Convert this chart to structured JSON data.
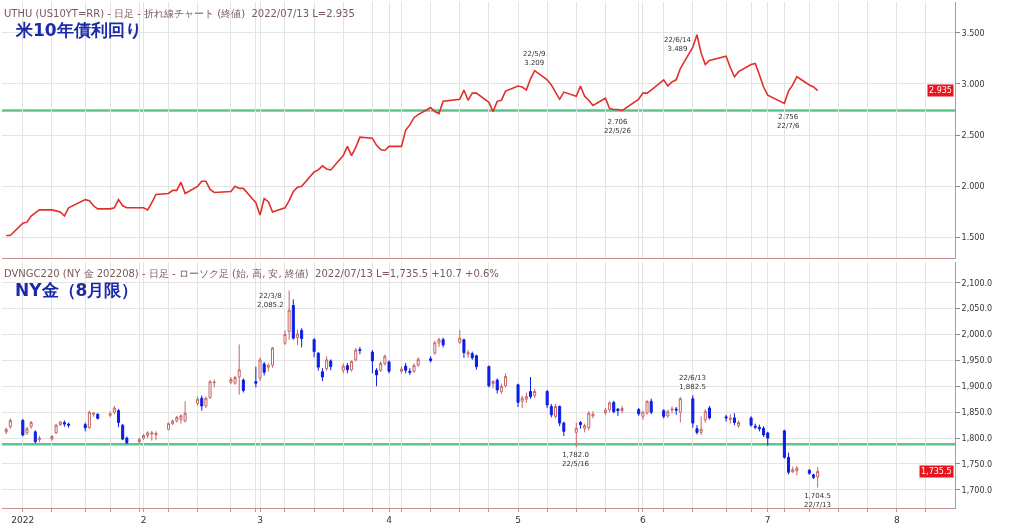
{
  "chart_data": [
    {
      "type": "line",
      "title": "米10年債利回り",
      "subtitle": "UTHU (US10YT=RR) - 日足 - 折れ線チャート (終値)  2022/07/13 L=2.935",
      "color": "#e0302a",
      "grid": true,
      "tick_labels": "y",
      "x": [
        "2021-12-30",
        "2021-12-31",
        "2022-01-03",
        "2022-01-04",
        "2022-01-05",
        "2022-01-06",
        "2022-01-07",
        "2022-01-10",
        "2022-01-11",
        "2022-01-12",
        "2022-01-13",
        "2022-01-14",
        "2022-01-18",
        "2022-01-19",
        "2022-01-20",
        "2022-01-21",
        "2022-01-24",
        "2022-01-25",
        "2022-01-26",
        "2022-01-27",
        "2022-01-28",
        "2022-01-31",
        "2022-02-01",
        "2022-02-02",
        "2022-02-03",
        "2022-02-04",
        "2022-02-07",
        "2022-02-08",
        "2022-02-09",
        "2022-02-10",
        "2022-02-11",
        "2022-02-14",
        "2022-02-15",
        "2022-02-16",
        "2022-02-17",
        "2022-02-18",
        "2022-02-22",
        "2022-02-23",
        "2022-02-24",
        "2022-02-25",
        "2022-02-28",
        "2022-03-01",
        "2022-03-02",
        "2022-03-03",
        "2022-03-04",
        "2022-03-07",
        "2022-03-08",
        "2022-03-09",
        "2022-03-10",
        "2022-03-11",
        "2022-03-14",
        "2022-03-15",
        "2022-03-16",
        "2022-03-17",
        "2022-03-18",
        "2022-03-21",
        "2022-03-22",
        "2022-03-23",
        "2022-03-24",
        "2022-03-25",
        "2022-03-28",
        "2022-03-29",
        "2022-03-30",
        "2022-03-31",
        "2022-04-01",
        "2022-04-04",
        "2022-04-05",
        "2022-04-06",
        "2022-04-07",
        "2022-04-08",
        "2022-04-11",
        "2022-04-12",
        "2022-04-13",
        "2022-04-14",
        "2022-04-18",
        "2022-04-19",
        "2022-04-20",
        "2022-04-21",
        "2022-04-22",
        "2022-04-25",
        "2022-04-26",
        "2022-04-27",
        "2022-04-28",
        "2022-04-29",
        "2022-05-02",
        "2022-05-03",
        "2022-05-04",
        "2022-05-05",
        "2022-05-06",
        "2022-05-09",
        "2022-05-10",
        "2022-05-11",
        "2022-05-12",
        "2022-05-13",
        "2022-05-16",
        "2022-05-17",
        "2022-05-18",
        "2022-05-19",
        "2022-05-20",
        "2022-05-23",
        "2022-05-24",
        "2022-05-25",
        "2022-05-26",
        "2022-05-27",
        "2022-05-31",
        "2022-06-01",
        "2022-06-02",
        "2022-06-03",
        "2022-06-06",
        "2022-06-07",
        "2022-06-08",
        "2022-06-09",
        "2022-06-10",
        "2022-06-13",
        "2022-06-14",
        "2022-06-15",
        "2022-06-16",
        "2022-06-17",
        "2022-06-21",
        "2022-06-22",
        "2022-06-23",
        "2022-06-24",
        "2022-06-27",
        "2022-06-28",
        "2022-06-29",
        "2022-06-30",
        "2022-07-01",
        "2022-07-05",
        "2022-07-06",
        "2022-07-07",
        "2022-07-08",
        "2022-07-11",
        "2022-07-12",
        "2022-07-13"
      ],
      "values": [
        1.52,
        1.52,
        1.64,
        1.65,
        1.71,
        1.74,
        1.77,
        1.77,
        1.76,
        1.75,
        1.71,
        1.79,
        1.87,
        1.86,
        1.81,
        1.78,
        1.78,
        1.79,
        1.87,
        1.81,
        1.79,
        1.79,
        1.79,
        1.77,
        1.84,
        1.92,
        1.93,
        1.96,
        1.96,
        2.04,
        1.93,
        2.0,
        2.05,
        2.05,
        1.97,
        1.94,
        1.95,
        2.0,
        1.98,
        1.98,
        1.84,
        1.72,
        1.88,
        1.85,
        1.75,
        1.79,
        1.86,
        1.95,
        1.99,
        2.0,
        2.14,
        2.16,
        2.2,
        2.17,
        2.16,
        2.3,
        2.39,
        2.3,
        2.38,
        2.48,
        2.47,
        2.4,
        2.36,
        2.35,
        2.39,
        2.39,
        2.55,
        2.6,
        2.67,
        2.7,
        2.77,
        2.73,
        2.71,
        2.83,
        2.85,
        2.94,
        2.84,
        2.91,
        2.91,
        2.82,
        2.73,
        2.83,
        2.84,
        2.93,
        2.98,
        2.97,
        2.94,
        3.05,
        3.13,
        3.04,
        2.99,
        2.92,
        2.85,
        2.92,
        2.88,
        2.98,
        2.88,
        2.84,
        2.79,
        2.86,
        2.76,
        2.75,
        2.75,
        2.74,
        2.85,
        2.91,
        2.91,
        2.94,
        3.04,
        2.98,
        3.02,
        3.04,
        3.15,
        3.36,
        3.48,
        3.3,
        3.19,
        3.23,
        3.27,
        3.16,
        3.07,
        3.12,
        3.19,
        3.2,
        3.09,
        2.97,
        2.89,
        2.81,
        2.93,
        2.99,
        3.07,
        2.99,
        2.97,
        2.935
      ],
      "xlim": [
        "2021-12-29",
        "2022-08-15"
      ],
      "xticks": [
        {
          "value": "2022-01-03",
          "label": null
        },
        {
          "value": "2022-01-10",
          "label": null
        },
        {
          "value": "2022-01-18",
          "label": null
        },
        {
          "value": "2022-01-24",
          "label": null
        },
        {
          "value": "2022-01-31",
          "label": null
        },
        {
          "value": "2022-02-01",
          "label": null
        },
        {
          "value": "2022-02-07",
          "label": null
        },
        {
          "value": "2022-02-14",
          "label": null
        },
        {
          "value": "2022-02-22",
          "label": null
        },
        {
          "value": "2022-02-28",
          "label": null
        },
        {
          "value": "2022-03-01",
          "label": null
        },
        {
          "value": "2022-03-07",
          "label": null
        },
        {
          "value": "2022-03-14",
          "label": null
        },
        {
          "value": "2022-03-21",
          "label": null
        },
        {
          "value": "2022-03-28",
          "label": null
        },
        {
          "value": "2022-04-01",
          "label": null
        },
        {
          "value": "2022-04-04",
          "label": null
        },
        {
          "value": "2022-04-11",
          "label": null
        },
        {
          "value": "2022-04-18",
          "label": null
        },
        {
          "value": "2022-04-25",
          "label": null
        },
        {
          "value": "2022-05-02",
          "label": null
        },
        {
          "value": "2022-05-09",
          "label": null
        },
        {
          "value": "2022-05-16",
          "label": null
        },
        {
          "value": "2022-05-23",
          "label": null
        },
        {
          "value": "2022-05-31",
          "label": null
        },
        {
          "value": "2022-06-01",
          "label": null
        },
        {
          "value": "2022-06-06",
          "label": null
        },
        {
          "value": "2022-06-13",
          "label": null
        },
        {
          "value": "2022-06-21",
          "label": null
        },
        {
          "value": "2022-06-27",
          "label": null
        },
        {
          "value": "2022-07-01",
          "label": null
        },
        {
          "value": "2022-07-05",
          "label": null
        },
        {
          "value": "2022-07-11",
          "label": null
        },
        {
          "value": "2022-07-18",
          "label": null
        },
        {
          "value": "2022-07-25",
          "label": null
        },
        {
          "value": "2022-08-01",
          "label": null
        },
        {
          "value": "2022-08-08",
          "label": null
        }
      ],
      "ylim": [
        1.3,
        3.8
      ],
      "yticks": [
        {
          "value": 1.5,
          "label": "1.500"
        },
        {
          "value": 2.0,
          "label": "2.000"
        },
        {
          "value": 2.5,
          "label": "2.500"
        },
        {
          "value": 3.0,
          "label": "3.000"
        },
        {
          "value": 3.5,
          "label": "3.500"
        }
      ],
      "ref_lines": [
        {
          "axis": "y",
          "value": 2.74,
          "color": "#5cc48c"
        }
      ],
      "annotations": [
        {
          "text": "22/5/9\n3.209",
          "x": "2022-05-06",
          "y": 3.13
        },
        {
          "text": "2.706\n22/5/26",
          "x": "2022-05-26",
          "y": 2.706
        },
        {
          "text": "22/6/14\n3.489",
          "x": "2022-06-14",
          "y": 3.489
        },
        {
          "text": "2.756\n22/7/6",
          "x": "2022-07-06",
          "y": 2.756
        },
        {
          "text": "2.935",
          "y": 2.935
        }
      ]
    },
    {
      "type": "candlestick",
      "title": "NY金（8月限）",
      "subtitle": "DVNGC220 (NY 金 202208) - 日足 - ローソク足 (始, 高, 安, 終値)  2022/07/13 L=1,735.5 +10.7 +0.6%",
      "colors": [
        "#c86464",
        "#c86464",
        "#0a1ee6",
        "#c86464",
        "#c86464",
        "#0a1ee6",
        "#c86464",
        "#c86464",
        "#c86464",
        "#c86464",
        "#0a1ee6",
        "#0a1ee6",
        "#0a1ee6",
        "#c86464",
        "#c86464",
        "#0a1ee6",
        "#c86464",
        "#c86464",
        "#0a1ee6",
        "#0a1ee6",
        "#0a1ee6",
        "#c86464",
        "#c86464",
        "#c86464",
        "#c86464",
        "#c86464",
        "#c86464",
        "#c86464",
        "#c86464",
        "#c86464",
        "#c86464",
        "#c86464",
        "#0a1ee6",
        "#c86464",
        "#c86464",
        "#c86464",
        "#c86464",
        "#c86464",
        "#c86464",
        "#0a1ee6",
        "#0a1ee6",
        "#c86464",
        "#0a1ee6",
        "#c86464",
        "#c86464",
        "#c86464",
        "#c86464",
        "#0a1ee6",
        "#c86464",
        "#0a1ee6",
        "#0a1ee6",
        "#0a1ee6",
        "#0a1ee6",
        "#c86464",
        "#0a1ee6",
        "#c86464",
        "#0a1ee6",
        "#c86464",
        "#c86464",
        "#0a1ee6",
        "#0a1ee6",
        "#0a1ee6",
        "#c86464",
        "#c86464",
        "#0a1ee6",
        "#c86464",
        "#0a1ee6",
        "#0a1ee6",
        "#c86464",
        "#c86464",
        "#0a1ee6",
        "#c86464",
        "#c86464",
        "#0a1ee6",
        "#c86464",
        "#0a1ee6",
        "#c86464",
        "#0a1ee6",
        "#0a1ee6",
        "#0a1ee6",
        "#c86464",
        "#0a1ee6",
        "#c86464",
        "#c86464",
        "#0a1ee6",
        "#c86464",
        "#c86464",
        "#0a1ee6",
        "#c86464",
        "#0a1ee6",
        "#0a1ee6",
        "#c86464",
        "#0a1ee6",
        "#0a1ee6",
        "#c86464",
        "#0a1ee6",
        "#c86464",
        "#c86464",
        "#c86464",
        "#c86464",
        "#c86464",
        "#0a1ee6",
        "#0a1ee6",
        "#c86464",
        "#0a1ee6",
        "#c86464",
        "#c86464",
        "#0a1ee6",
        "#0a1ee6",
        "#c86464",
        "#c86464",
        "#0a1ee6",
        "#c86464",
        "#0a1ee6",
        "#0a1ee6",
        "#c86464",
        "#c86464",
        "#0a1ee6",
        "#0a1ee6",
        "#c86464",
        "#0a1ee6",
        "#c86464",
        "#0a1ee6",
        "#0a1ee6",
        "#0a1ee6",
        "#0a1ee6",
        "#0a1ee6",
        "#0a1ee6",
        "#0a1ee6",
        "#c86464",
        "#c86464",
        "#0a1ee6",
        "#0a1ee6",
        "#c86464"
      ],
      "grid": true,
      "x": [
        "2021-12-30",
        "2021-12-31",
        "2022-01-03",
        "2022-01-04",
        "2022-01-05",
        "2022-01-06",
        "2022-01-07",
        "2022-01-10",
        "2022-01-11",
        "2022-01-12",
        "2022-01-13",
        "2022-01-14",
        "2022-01-18",
        "2022-01-19",
        "2022-01-20",
        "2022-01-21",
        "2022-01-24",
        "2022-01-25",
        "2022-01-26",
        "2022-01-27",
        "2022-01-28",
        "2022-01-31",
        "2022-02-01",
        "2022-02-02",
        "2022-02-03",
        "2022-02-04",
        "2022-02-07",
        "2022-02-08",
        "2022-02-09",
        "2022-02-10",
        "2022-02-11",
        "2022-02-14",
        "2022-02-15",
        "2022-02-16",
        "2022-02-17",
        "2022-02-18",
        "2022-02-22",
        "2022-02-23",
        "2022-02-24",
        "2022-02-25",
        "2022-02-28",
        "2022-03-01",
        "2022-03-02",
        "2022-03-03",
        "2022-03-04",
        "2022-03-07",
        "2022-03-08",
        "2022-03-09",
        "2022-03-10",
        "2022-03-11",
        "2022-03-14",
        "2022-03-15",
        "2022-03-16",
        "2022-03-17",
        "2022-03-18",
        "2022-03-21",
        "2022-03-22",
        "2022-03-23",
        "2022-03-24",
        "2022-03-25",
        "2022-03-28",
        "2022-03-29",
        "2022-03-30",
        "2022-03-31",
        "2022-04-01",
        "2022-04-04",
        "2022-04-05",
        "2022-04-06",
        "2022-04-07",
        "2022-04-08",
        "2022-04-11",
        "2022-04-12",
        "2022-04-13",
        "2022-04-14",
        "2022-04-18",
        "2022-04-19",
        "2022-04-20",
        "2022-04-21",
        "2022-04-22",
        "2022-04-25",
        "2022-04-26",
        "2022-04-27",
        "2022-04-28",
        "2022-04-29",
        "2022-05-02",
        "2022-05-03",
        "2022-05-04",
        "2022-05-05",
        "2022-05-06",
        "2022-05-09",
        "2022-05-10",
        "2022-05-11",
        "2022-05-12",
        "2022-05-13",
        "2022-05-16",
        "2022-05-17",
        "2022-05-18",
        "2022-05-19",
        "2022-05-20",
        "2022-05-23",
        "2022-05-24",
        "2022-05-25",
        "2022-05-26",
        "2022-05-27",
        "2022-05-31",
        "2022-06-01",
        "2022-06-02",
        "2022-06-03",
        "2022-06-06",
        "2022-06-07",
        "2022-06-08",
        "2022-06-09",
        "2022-06-10",
        "2022-06-13",
        "2022-06-14",
        "2022-06-15",
        "2022-06-16",
        "2022-06-17",
        "2022-06-21",
        "2022-06-22",
        "2022-06-23",
        "2022-06-24",
        "2022-06-27",
        "2022-06-28",
        "2022-06-29",
        "2022-06-30",
        "2022-07-01",
        "2022-07-05",
        "2022-07-06",
        "2022-07-07",
        "2022-07-08",
        "2022-07-11",
        "2022-07-12",
        "2022-07-13"
      ],
      "ohlc": [
        [
          1812,
          1820,
          1808,
          1817
        ],
        [
          1822,
          1838,
          1818,
          1834
        ],
        [
          1834,
          1837,
          1803,
          1806
        ],
        [
          1810,
          1822,
          1806,
          1818
        ],
        [
          1822,
          1833,
          1818,
          1830
        ],
        [
          1812,
          1815,
          1790,
          1793
        ],
        [
          1797,
          1804,
          1792,
          1800
        ],
        [
          1798,
          1806,
          1795,
          1803
        ],
        [
          1810,
          1828,
          1808,
          1825
        ],
        [
          1826,
          1833,
          1823,
          1831
        ],
        [
          1830,
          1834,
          1822,
          1827
        ],
        [
          1827,
          1830,
          1820,
          1825
        ],
        [
          1826,
          1830,
          1813,
          1820
        ],
        [
          1820,
          1853,
          1818,
          1850
        ],
        [
          1846,
          1850,
          1841,
          1848
        ],
        [
          1846,
          1848,
          1836,
          1838
        ],
        [
          1844,
          1851,
          1840,
          1847
        ],
        [
          1850,
          1862,
          1846,
          1858
        ],
        [
          1853,
          1856,
          1821,
          1830
        ],
        [
          1825,
          1827,
          1796,
          1798
        ],
        [
          1800,
          1803,
          1788,
          1791
        ],
        [
          1793,
          1800,
          1788,
          1797
        ],
        [
          1800,
          1808,
          1797,
          1805
        ],
        [
          1805,
          1813,
          1800,
          1810
        ],
        [
          1808,
          1814,
          1795,
          1810
        ],
        [
          1806,
          1813,
          1796,
          1809
        ],
        [
          1817,
          1830,
          1815,
          1828
        ],
        [
          1828,
          1836,
          1825,
          1833
        ],
        [
          1833,
          1843,
          1830,
          1840
        ],
        [
          1836,
          1846,
          1828,
          1843
        ],
        [
          1833,
          1871,
          1830,
          1848
        ],
        [
          1867,
          1880,
          1863,
          1875
        ],
        [
          1877,
          1882,
          1853,
          1862
        ],
        [
          1862,
          1880,
          1858,
          1877
        ],
        [
          1878,
          1912,
          1876,
          1909
        ],
        [
          1907,
          1913,
          1898,
          1908
        ],
        [
          1908,
          1918,
          1904,
          1913
        ],
        [
          1906,
          1920,
          1903,
          1917
        ],
        [
          1918,
          1981,
          1884,
          1932
        ],
        [
          1912,
          1915,
          1888,
          1892
        ],
        [
          1909,
          1938,
          1898,
          1906
        ],
        [
          1916,
          1956,
          1910,
          1951
        ],
        [
          1943,
          1947,
          1921,
          1927
        ],
        [
          1937,
          1944,
          1929,
          1940
        ],
        [
          1941,
          1976,
          1936,
          1974
        ],
        [
          1983,
          2008,
          1980,
          2000
        ],
        [
          2006,
          2085.2,
          1990,
          2047
        ],
        [
          2056,
          2068,
          1990,
          1993
        ],
        [
          1994,
          2010,
          1980,
          2001
        ],
        [
          2008,
          2012,
          1975,
          1992
        ],
        [
          1990,
          1993,
          1956,
          1967
        ],
        [
          1964,
          1966,
          1930,
          1937
        ],
        [
          1928,
          1935,
          1910,
          1918
        ],
        [
          1934,
          1958,
          1930,
          1951
        ],
        [
          1949,
          1952,
          1931,
          1938
        ],
        [
          1931,
          1944,
          1925,
          1939
        ],
        [
          1940,
          1945,
          1925,
          1932
        ],
        [
          1932,
          1950,
          1928,
          1948
        ],
        [
          1951,
          1974,
          1948,
          1970
        ],
        [
          1971,
          1976,
          1962,
          1969
        ],
        [
          1966,
          1970,
          1925,
          1949
        ],
        [
          1931,
          1935,
          1900,
          1922
        ],
        [
          1931,
          1948,
          1928,
          1944
        ],
        [
          1944,
          1961,
          1940,
          1958
        ],
        [
          1947,
          1950,
          1925,
          1929
        ],
        [
          1929,
          1938,
          1926,
          1933
        ],
        [
          1939,
          1945,
          1925,
          1931
        ],
        [
          1929,
          1935,
          1922,
          1927
        ],
        [
          1929,
          1944,
          1926,
          1940
        ],
        [
          1941,
          1956,
          1938,
          1952
        ],
        [
          1953,
          1958,
          1946,
          1950
        ],
        [
          1964,
          1988,
          1961,
          1984
        ],
        [
          1984,
          1994,
          1976,
          1990
        ],
        [
          1990,
          1994,
          1975,
          1980
        ],
        [
          1985,
          2009,
          1982,
          1993
        ],
        [
          1990,
          1992,
          1955,
          1965
        ],
        [
          1962,
          1970,
          1955,
          1965
        ],
        [
          1963,
          1967,
          1951,
          1955
        ],
        [
          1959,
          1961,
          1932,
          1938
        ],
        [
          1938,
          1940,
          1898,
          1901
        ],
        [
          1905,
          1912,
          1896,
          1909
        ],
        [
          1912,
          1915,
          1886,
          1893
        ],
        [
          1890,
          1905,
          1885,
          1900
        ],
        [
          1901,
          1925,
          1898,
          1919
        ],
        [
          1903,
          1905,
          1860,
          1869
        ],
        [
          1871,
          1882,
          1858,
          1877
        ],
        [
          1875,
          1888,
          1868,
          1880
        ],
        [
          1890,
          1918,
          1876,
          1880
        ],
        [
          1882,
          1895,
          1877,
          1890
        ],
        [
          1890,
          1893,
          1858,
          1864
        ],
        [
          1861,
          1866,
          1840,
          1845
        ],
        [
          1842,
          1866,
          1838,
          1861
        ],
        [
          1861,
          1863,
          1823,
          1829
        ],
        [
          1829,
          1832,
          1804,
          1813
        ],
        [
          1811,
          1830,
          1782,
          1819
        ],
        [
          1830,
          1833,
          1818,
          1826
        ],
        [
          1819,
          1828,
          1811,
          1824
        ],
        [
          1820,
          1852,
          1815,
          1848
        ],
        [
          1843,
          1852,
          1838,
          1846
        ],
        [
          1849,
          1858,
          1844,
          1854
        ],
        [
          1855,
          1871,
          1850,
          1868
        ],
        [
          1869,
          1872,
          1848,
          1851
        ],
        [
          1856,
          1858,
          1843,
          1853
        ],
        [
          1853,
          1862,
          1848,
          1857
        ],
        [
          1855,
          1858,
          1843,
          1847
        ],
        [
          1842,
          1853,
          1835,
          1850
        ],
        [
          1849,
          1873,
          1845,
          1871
        ],
        [
          1871,
          1876,
          1846,
          1850
        ],
        [
          1853,
          1856,
          1838,
          1842
        ],
        [
          1843,
          1855,
          1839,
          1851
        ],
        [
          1854,
          1861,
          1848,
          1856
        ],
        [
          1856,
          1860,
          1845,
          1854
        ],
        [
          1850,
          1879,
          1830,
          1876
        ],
        [
          1876,
          1882.5,
          1820,
          1829
        ],
        [
          1818,
          1825,
          1807,
          1811
        ],
        [
          1811,
          1842,
          1806,
          1817
        ],
        [
          1835,
          1856,
          1830,
          1851
        ],
        [
          1858,
          1862,
          1836,
          1839
        ],
        [
          1841,
          1845,
          1832,
          1839
        ],
        [
          1836,
          1846,
          1828,
          1838
        ],
        [
          1839,
          1848,
          1825,
          1830
        ],
        [
          1824,
          1834,
          1820,
          1830
        ],
        [
          1839,
          1842,
          1822,
          1825
        ],
        [
          1823,
          1828,
          1817,
          1821
        ],
        [
          1821,
          1826,
          1813,
          1818
        ],
        [
          1819,
          1823,
          1802,
          1806
        ],
        [
          1810,
          1812,
          1785,
          1800
        ],
        [
          1814,
          1816,
          1760,
          1763
        ],
        [
          1763,
          1772,
          1730,
          1734
        ],
        [
          1735,
          1745,
          1733,
          1739
        ],
        [
          1737,
          1746,
          1728,
          1742
        ],
        [
          1738,
          1740,
          1729,
          1732
        ],
        [
          1729,
          1731,
          1721,
          1724
        ],
        [
          1725,
          1744,
          1704.5,
          1735.5
        ]
      ],
      "xlim": [
        "2021-12-29",
        "2022-08-15"
      ],
      "xticks": [
        {
          "value": "2022-01-03",
          "label": "2022"
        },
        {
          "value": "2022-01-10",
          "label": null
        },
        {
          "value": "2022-01-18",
          "label": null
        },
        {
          "value": "2022-01-24",
          "label": null
        },
        {
          "value": "2022-01-31",
          "label": null
        },
        {
          "value": "2022-02-01",
          "label": "2"
        },
        {
          "value": "2022-02-07",
          "label": null
        },
        {
          "value": "2022-02-14",
          "label": null
        },
        {
          "value": "2022-02-22",
          "label": null
        },
        {
          "value": "2022-02-28",
          "label": null
        },
        {
          "value": "2022-03-01",
          "label": "3"
        },
        {
          "value": "2022-03-07",
          "label": null
        },
        {
          "value": "2022-03-14",
          "label": null
        },
        {
          "value": "2022-03-21",
          "label": null
        },
        {
          "value": "2022-03-28",
          "label": null
        },
        {
          "value": "2022-04-01",
          "label": "4"
        },
        {
          "value": "2022-04-04",
          "label": null
        },
        {
          "value": "2022-04-11",
          "label": null
        },
        {
          "value": "2022-04-18",
          "label": null
        },
        {
          "value": "2022-04-25",
          "label": null
        },
        {
          "value": "2022-05-02",
          "label": "5"
        },
        {
          "value": "2022-05-09",
          "label": null
        },
        {
          "value": "2022-05-16",
          "label": null
        },
        {
          "value": "2022-05-23",
          "label": null
        },
        {
          "value": "2022-05-31",
          "label": null
        },
        {
          "value": "2022-06-01",
          "label": "6"
        },
        {
          "value": "2022-06-06",
          "label": null
        },
        {
          "value": "2022-06-13",
          "label": null
        },
        {
          "value": "2022-06-21",
          "label": null
        },
        {
          "value": "2022-06-27",
          "label": null
        },
        {
          "value": "2022-07-01",
          "label": "7"
        },
        {
          "value": "2022-07-05",
          "label": null
        },
        {
          "value": "2022-07-11",
          "label": null
        },
        {
          "value": "2022-07-18",
          "label": null
        },
        {
          "value": "2022-07-25",
          "label": null
        },
        {
          "value": "2022-08-01",
          "label": "8"
        },
        {
          "value": "2022-08-08",
          "label": null
        }
      ],
      "ylim": [
        1665,
        2140
      ],
      "yticks": [
        {
          "value": 1700,
          "label": "1,700.0"
        },
        {
          "value": 1750,
          "label": "1,750.0"
        },
        {
          "value": 1800,
          "label": "1,800.0"
        },
        {
          "value": 1850,
          "label": "1,850.0"
        },
        {
          "value": 1900,
          "label": "1,900.0"
        },
        {
          "value": 1950,
          "label": "1,950.0"
        },
        {
          "value": 2000,
          "label": "2,000.0"
        },
        {
          "value": 2050,
          "label": "2,050.0"
        },
        {
          "value": 2100,
          "label": "2,100.0"
        }
      ],
      "ref_lines": [
        {
          "axis": "y",
          "value": 1788,
          "color": "#5cc48c"
        }
      ],
      "annotations": [
        {
          "text": "22/3/8\n2,085.2",
          "x": "2022-03-08",
          "y": 2085.2
        },
        {
          "text": "1,782.0\n22/5/16",
          "x": "2022-05-16",
          "y": 1782.0
        },
        {
          "text": "22/6/13\n1,882.5",
          "x": "2022-06-13",
          "y": 1882.5
        },
        {
          "text": "1,704.5\n22/7/13",
          "x": "2022-07-13",
          "y": 1704.5
        },
        {
          "text": "1,735.5",
          "y": 1735.5
        }
      ]
    }
  ]
}
